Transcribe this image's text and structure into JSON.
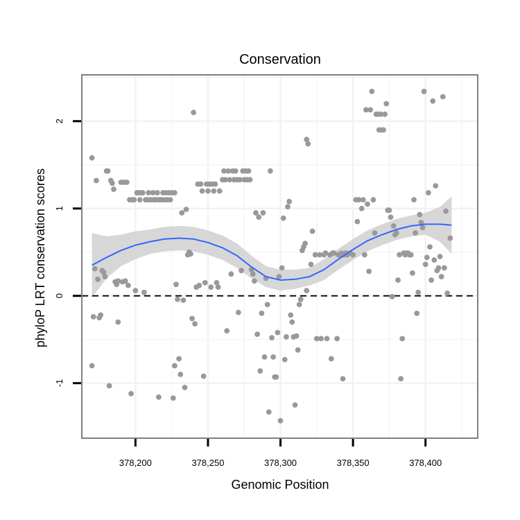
{
  "chart_data": {
    "type": "scatter",
    "title": "Conservation",
    "xlabel": "Genomic Position",
    "ylabel": "phyloP LRT conservation scores",
    "xlim": [
      378163,
      378436
    ],
    "ylim": [
      -1.63,
      2.53
    ],
    "x_ticks": [
      378200,
      378250,
      378300,
      378350,
      378400
    ],
    "x_tick_labels": [
      "378,200",
      "378,250",
      "378,300",
      "378,350",
      "378,400"
    ],
    "y_ticks": [
      -1,
      0,
      1,
      2
    ],
    "y_tick_labels": [
      "-1",
      "0",
      "1",
      "2"
    ],
    "grid": true,
    "reference_line": {
      "y": 0,
      "style": "dashed"
    },
    "colors": {
      "points": "#999999",
      "smooth_line": "#3366ff",
      "confidence_band": "#d3d3d3",
      "panel_border": "#7f7f7f",
      "grid": "#f2f2f2"
    },
    "points": [
      {
        "x": 378170,
        "y": 1.58
      },
      {
        "x": 378170,
        "y": -0.8
      },
      {
        "x": 378171,
        "y": -0.24
      },
      {
        "x": 378172,
        "y": 0.31
      },
      {
        "x": 378173,
        "y": 1.32
      },
      {
        "x": 378174,
        "y": 0.19
      },
      {
        "x": 378175,
        "y": -0.25
      },
      {
        "x": 378176,
        "y": -0.22
      },
      {
        "x": 378177,
        "y": 0.29
      },
      {
        "x": 378178,
        "y": 0.27
      },
      {
        "x": 378179,
        "y": 0.22
      },
      {
        "x": 378180,
        "y": 1.43
      },
      {
        "x": 378181,
        "y": 1.43
      },
      {
        "x": 378182,
        "y": -1.03
      },
      {
        "x": 378183,
        "y": 1.32
      },
      {
        "x": 378184,
        "y": 1.29
      },
      {
        "x": 378185,
        "y": 1.22
      },
      {
        "x": 378186,
        "y": 0.16
      },
      {
        "x": 378187,
        "y": 0.13
      },
      {
        "x": 378188,
        "y": -0.3
      },
      {
        "x": 378188,
        "y": 0.17
      },
      {
        "x": 378190,
        "y": 1.3
      },
      {
        "x": 378191,
        "y": 0.16
      },
      {
        "x": 378192,
        "y": 1.3
      },
      {
        "x": 378193,
        "y": 0.17
      },
      {
        "x": 378194,
        "y": 1.3
      },
      {
        "x": 378195,
        "y": 0.12
      },
      {
        "x": 378196,
        "y": 1.1
      },
      {
        "x": 378197,
        "y": -1.12
      },
      {
        "x": 378198,
        "y": 1.1
      },
      {
        "x": 378199,
        "y": 1.1
      },
      {
        "x": 378200,
        "y": 0.06
      },
      {
        "x": 378201,
        "y": 1.18
      },
      {
        "x": 378202,
        "y": 1.18
      },
      {
        "x": 378203,
        "y": 1.1
      },
      {
        "x": 378204,
        "y": 1.18
      },
      {
        "x": 378205,
        "y": 1.18
      },
      {
        "x": 378206,
        "y": 0.04
      },
      {
        "x": 378207,
        "y": 1.1
      },
      {
        "x": 378208,
        "y": 1.1
      },
      {
        "x": 378209,
        "y": 1.18
      },
      {
        "x": 378210,
        "y": 1.1
      },
      {
        "x": 378211,
        "y": 1.1
      },
      {
        "x": 378212,
        "y": 1.18
      },
      {
        "x": 378213,
        "y": 1.1
      },
      {
        "x": 378214,
        "y": 1.1
      },
      {
        "x": 378215,
        "y": 1.18
      },
      {
        "x": 378216,
        "y": -1.16
      },
      {
        "x": 378216,
        "y": 1.1
      },
      {
        "x": 378217,
        "y": 1.1
      },
      {
        "x": 378218,
        "y": 1.1
      },
      {
        "x": 378219,
        "y": 1.18
      },
      {
        "x": 378220,
        "y": 1.1
      },
      {
        "x": 378221,
        "y": 1.18
      },
      {
        "x": 378222,
        "y": 1.1
      },
      {
        "x": 378223,
        "y": 1.18
      },
      {
        "x": 378224,
        "y": 1.1
      },
      {
        "x": 378225,
        "y": 1.18
      },
      {
        "x": 378226,
        "y": -1.17
      },
      {
        "x": 378227,
        "y": -0.8
      },
      {
        "x": 378227,
        "y": 1.18
      },
      {
        "x": 378228,
        "y": 0.13
      },
      {
        "x": 378229,
        "y": -0.04
      },
      {
        "x": 378230,
        "y": -0.72
      },
      {
        "x": 378231,
        "y": -0.9
      },
      {
        "x": 378232,
        "y": 0.95
      },
      {
        "x": 378233,
        "y": -0.05
      },
      {
        "x": 378234,
        "y": -1.05
      },
      {
        "x": 378235,
        "y": 0.99
      },
      {
        "x": 378236,
        "y": 0.47
      },
      {
        "x": 378237,
        "y": 0.5
      },
      {
        "x": 378238,
        "y": 0.48
      },
      {
        "x": 378239,
        "y": -0.26
      },
      {
        "x": 378240,
        "y": 2.1
      },
      {
        "x": 378241,
        "y": -0.32
      },
      {
        "x": 378242,
        "y": 0.1
      },
      {
        "x": 378243,
        "y": 1.28
      },
      {
        "x": 378244,
        "y": 0.12
      },
      {
        "x": 378245,
        "y": 1.28
      },
      {
        "x": 378246,
        "y": 1.2
      },
      {
        "x": 378247,
        "y": -0.92
      },
      {
        "x": 378248,
        "y": 0.15
      },
      {
        "x": 378249,
        "y": 1.28
      },
      {
        "x": 378250,
        "y": 1.2
      },
      {
        "x": 378251,
        "y": 1.28
      },
      {
        "x": 378252,
        "y": 0.1
      },
      {
        "x": 378253,
        "y": 1.28
      },
      {
        "x": 378254,
        "y": 1.2
      },
      {
        "x": 378255,
        "y": 1.28
      },
      {
        "x": 378256,
        "y": 0.15
      },
      {
        "x": 378257,
        "y": 0.1
      },
      {
        "x": 378258,
        "y": 1.2
      },
      {
        "x": 378260,
        "y": 1.33
      },
      {
        "x": 378261,
        "y": 1.43
      },
      {
        "x": 378262,
        "y": 1.33
      },
      {
        "x": 378263,
        "y": -0.4
      },
      {
        "x": 378264,
        "y": 1.43
      },
      {
        "x": 378265,
        "y": 1.33
      },
      {
        "x": 378266,
        "y": 0.25
      },
      {
        "x": 378267,
        "y": 1.43
      },
      {
        "x": 378268,
        "y": 1.33
      },
      {
        "x": 378269,
        "y": 1.43
      },
      {
        "x": 378270,
        "y": 1.33
      },
      {
        "x": 378271,
        "y": -0.19
      },
      {
        "x": 378272,
        "y": 1.33
      },
      {
        "x": 378273,
        "y": 0.29
      },
      {
        "x": 378274,
        "y": 1.43
      },
      {
        "x": 378275,
        "y": 1.33
      },
      {
        "x": 378276,
        "y": 1.43
      },
      {
        "x": 378277,
        "y": 1.33
      },
      {
        "x": 378278,
        "y": 1.43
      },
      {
        "x": 378279,
        "y": 1.33
      },
      {
        "x": 378280,
        "y": 0.3
      },
      {
        "x": 378281,
        "y": 0.25
      },
      {
        "x": 378282,
        "y": 0.17
      },
      {
        "x": 378283,
        "y": 0.95
      },
      {
        "x": 378284,
        "y": -0.44
      },
      {
        "x": 378285,
        "y": 0.9
      },
      {
        "x": 378286,
        "y": -0.86
      },
      {
        "x": 378287,
        "y": -0.2
      },
      {
        "x": 378288,
        "y": 0.95
      },
      {
        "x": 378289,
        "y": -0.7
      },
      {
        "x": 378290,
        "y": 0.2
      },
      {
        "x": 378291,
        "y": -0.1
      },
      {
        "x": 378292,
        "y": -1.33
      },
      {
        "x": 378293,
        "y": 1.43
      },
      {
        "x": 378294,
        "y": -0.48
      },
      {
        "x": 378295,
        "y": -0.7
      },
      {
        "x": 378296,
        "y": -0.93
      },
      {
        "x": 378297,
        "y": -0.93
      },
      {
        "x": 378298,
        "y": -0.42
      },
      {
        "x": 378299,
        "y": 0.22
      },
      {
        "x": 378300,
        "y": -1.43
      },
      {
        "x": 378301,
        "y": 0.32
      },
      {
        "x": 378302,
        "y": 0.89
      },
      {
        "x": 378303,
        "y": -0.73
      },
      {
        "x": 378304,
        "y": -0.47
      },
      {
        "x": 378305,
        "y": 1.02
      },
      {
        "x": 378306,
        "y": 1.08
      },
      {
        "x": 378307,
        "y": -0.22
      },
      {
        "x": 378308,
        "y": -0.3
      },
      {
        "x": 378309,
        "y": -0.47
      },
      {
        "x": 378310,
        "y": -1.25
      },
      {
        "x": 378311,
        "y": -0.46
      },
      {
        "x": 378312,
        "y": -0.62
      },
      {
        "x": 378313,
        "y": -0.1
      },
      {
        "x": 378314,
        "y": -0.04
      },
      {
        "x": 378315,
        "y": 0.52
      },
      {
        "x": 378316,
        "y": 0.56
      },
      {
        "x": 378317,
        "y": 0.6
      },
      {
        "x": 378318,
        "y": 0.06
      },
      {
        "x": 378318,
        "y": 1.79
      },
      {
        "x": 378319,
        "y": 1.74
      },
      {
        "x": 378321,
        "y": 0.36
      },
      {
        "x": 378322,
        "y": 0.74
      },
      {
        "x": 378324,
        "y": 0.47
      },
      {
        "x": 378325,
        "y": -0.49
      },
      {
        "x": 378327,
        "y": 0.47
      },
      {
        "x": 378328,
        "y": -0.49
      },
      {
        "x": 378330,
        "y": 0.47
      },
      {
        "x": 378331,
        "y": 0.49
      },
      {
        "x": 378332,
        "y": -0.49
      },
      {
        "x": 378334,
        "y": 0.47
      },
      {
        "x": 378335,
        "y": -0.72
      },
      {
        "x": 378336,
        "y": 0.49
      },
      {
        "x": 378337,
        "y": 0.49
      },
      {
        "x": 378339,
        "y": -0.49
      },
      {
        "x": 378340,
        "y": 0.47
      },
      {
        "x": 378341,
        "y": 0.47
      },
      {
        "x": 378342,
        "y": 0.49
      },
      {
        "x": 378343,
        "y": -0.95
      },
      {
        "x": 378344,
        "y": 0.47
      },
      {
        "x": 378345,
        "y": 0.49
      },
      {
        "x": 378346,
        "y": 0.47
      },
      {
        "x": 378348,
        "y": 0.49
      },
      {
        "x": 378350,
        "y": 0.47
      },
      {
        "x": 378352,
        "y": 1.1
      },
      {
        "x": 378353,
        "y": 0.85
      },
      {
        "x": 378354,
        "y": 1.1
      },
      {
        "x": 378356,
        "y": 1.0
      },
      {
        "x": 378357,
        "y": 1.1
      },
      {
        "x": 378358,
        "y": 0.47
      },
      {
        "x": 378359,
        "y": 2.13
      },
      {
        "x": 378360,
        "y": 1.05
      },
      {
        "x": 378361,
        "y": 0.28
      },
      {
        "x": 378362,
        "y": 2.13
      },
      {
        "x": 378363,
        "y": 2.34
      },
      {
        "x": 378364,
        "y": 1.1
      },
      {
        "x": 378365,
        "y": 0.72
      },
      {
        "x": 378366,
        "y": 2.08
      },
      {
        "x": 378367,
        "y": 2.08
      },
      {
        "x": 378368,
        "y": 1.9
      },
      {
        "x": 378369,
        "y": 2.08
      },
      {
        "x": 378370,
        "y": 1.9
      },
      {
        "x": 378371,
        "y": 1.9
      },
      {
        "x": 378372,
        "y": 2.08
      },
      {
        "x": 378373,
        "y": 2.2
      },
      {
        "x": 378374,
        "y": 0.98
      },
      {
        "x": 378375,
        "y": 0.98
      },
      {
        "x": 378376,
        "y": 0.9
      },
      {
        "x": 378377,
        "y": -0.01
      },
      {
        "x": 378378,
        "y": 0.8
      },
      {
        "x": 378379,
        "y": 0.7
      },
      {
        "x": 378380,
        "y": 0.72
      },
      {
        "x": 378381,
        "y": 0.18
      },
      {
        "x": 378382,
        "y": 0.47
      },
      {
        "x": 378383,
        "y": -0.95
      },
      {
        "x": 378384,
        "y": -0.49
      },
      {
        "x": 378385,
        "y": 0.49
      },
      {
        "x": 378386,
        "y": 0.47
      },
      {
        "x": 378387,
        "y": 0.49
      },
      {
        "x": 378388,
        "y": 0.49
      },
      {
        "x": 378389,
        "y": 0.47
      },
      {
        "x": 378390,
        "y": 0.47
      },
      {
        "x": 378391,
        "y": 0.26
      },
      {
        "x": 378392,
        "y": 1.1
      },
      {
        "x": 378393,
        "y": 0.72
      },
      {
        "x": 378394,
        "y": -0.2
      },
      {
        "x": 378395,
        "y": 0.04
      },
      {
        "x": 378396,
        "y": 0.93
      },
      {
        "x": 378397,
        "y": 0.84
      },
      {
        "x": 378398,
        "y": 0.78
      },
      {
        "x": 378399,
        "y": 2.34
      },
      {
        "x": 378400,
        "y": 0.36
      },
      {
        "x": 378401,
        "y": 0.44
      },
      {
        "x": 378402,
        "y": 1.18
      },
      {
        "x": 378403,
        "y": 0.56
      },
      {
        "x": 378404,
        "y": 0.18
      },
      {
        "x": 378405,
        "y": 2.23
      },
      {
        "x": 378406,
        "y": 0.41
      },
      {
        "x": 378407,
        "y": 1.26
      },
      {
        "x": 378408,
        "y": 0.29
      },
      {
        "x": 378409,
        "y": 0.32
      },
      {
        "x": 378410,
        "y": 0.45
      },
      {
        "x": 378411,
        "y": 0.22
      },
      {
        "x": 378412,
        "y": 2.28
      },
      {
        "x": 378413,
        "y": 0.32
      },
      {
        "x": 378414,
        "y": 0.97
      },
      {
        "x": 378415,
        "y": 0.03
      },
      {
        "x": 378417,
        "y": 0.66
      }
    ],
    "smooth_line": {
      "x": [
        378170,
        378180,
        378190,
        378200,
        378210,
        378220,
        378230,
        378240,
        378250,
        378260,
        378270,
        378280,
        378290,
        378300,
        378310,
        378320,
        378330,
        378340,
        378350,
        378360,
        378370,
        378380,
        378390,
        378400,
        378410,
        378418
      ],
      "y": [
        0.35,
        0.44,
        0.52,
        0.58,
        0.62,
        0.65,
        0.66,
        0.65,
        0.61,
        0.55,
        0.46,
        0.33,
        0.22,
        0.18,
        0.19,
        0.22,
        0.3,
        0.42,
        0.53,
        0.63,
        0.7,
        0.76,
        0.8,
        0.82,
        0.82,
        0.81
      ],
      "lower": [
        -0.02,
        0.2,
        0.34,
        0.42,
        0.48,
        0.51,
        0.52,
        0.51,
        0.47,
        0.41,
        0.32,
        0.2,
        0.1,
        0.06,
        0.08,
        0.12,
        0.18,
        0.3,
        0.41,
        0.51,
        0.58,
        0.64,
        0.68,
        0.7,
        0.62,
        0.48
      ],
      "upper": [
        0.72,
        0.68,
        0.7,
        0.74,
        0.76,
        0.79,
        0.8,
        0.79,
        0.75,
        0.69,
        0.6,
        0.46,
        0.34,
        0.3,
        0.3,
        0.32,
        0.42,
        0.54,
        0.65,
        0.75,
        0.82,
        0.88,
        0.92,
        0.95,
        1.02,
        1.14
      ]
    }
  }
}
